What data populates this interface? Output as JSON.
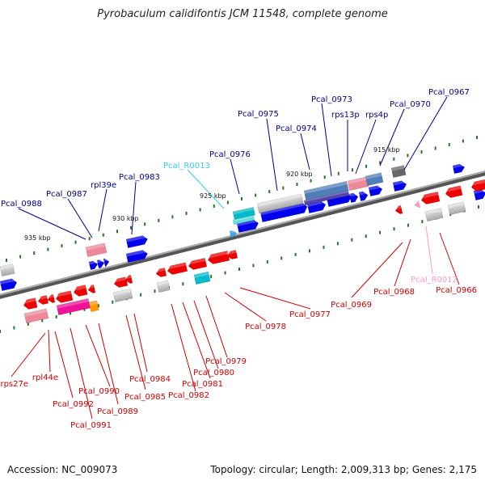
{
  "title": "Pyrobaculum calidifontis JCM 11548, complete genome",
  "footer": {
    "accession": "Accession: NC_009073",
    "topology": "Topology: circular; Length: 2,009,313 bp; Genes: 2,175"
  },
  "colors": {
    "backbone": "#777777",
    "plus_protein": "#0000ee",
    "minus_protein": "#ee0000",
    "rna_plus": "#00bbcc",
    "rna_minus": "#ff99cc",
    "rrna": "#ff9900",
    "ribosomal": "#ee1199",
    "label_plus": "#00008b",
    "label_minus": "#cc0000",
    "label_rna_plus": "#33ccee",
    "label_rna_minus": "#ff99cc",
    "tick": "#227722"
  },
  "kbp_labels": [
    {
      "text": "915 kbp"
    },
    {
      "text": "920 kbp"
    },
    {
      "text": "925 kbp"
    },
    {
      "text": "930 kbp"
    },
    {
      "text": "935 kbp"
    }
  ],
  "gene_labels_top": [
    {
      "text": "Pcal_0967",
      "kind": "plus"
    },
    {
      "text": "Pcal_0970",
      "kind": "plus"
    },
    {
      "text": "rps4p",
      "kind": "plus"
    },
    {
      "text": "rps13p",
      "kind": "plus"
    },
    {
      "text": "Pcal_0973",
      "kind": "plus"
    },
    {
      "text": "Pcal_0974",
      "kind": "plus"
    },
    {
      "text": "Pcal_0975",
      "kind": "plus"
    },
    {
      "text": "Pcal_0976",
      "kind": "plus"
    },
    {
      "text": "Pcal_R0013",
      "kind": "rna_plus"
    },
    {
      "text": "Pcal_0983",
      "kind": "plus"
    },
    {
      "text": "rpl39e",
      "kind": "plus"
    },
    {
      "text": "Pcal_0987",
      "kind": "plus"
    },
    {
      "text": "Pcal_0988",
      "kind": "plus"
    }
  ],
  "gene_labels_bottom": [
    {
      "text": "Pcal_0966",
      "kind": "minus"
    },
    {
      "text": "Pcal_R0012",
      "kind": "rna_minus"
    },
    {
      "text": "Pcal_0968",
      "kind": "minus"
    },
    {
      "text": "Pcal_0969",
      "kind": "minus"
    },
    {
      "text": "Pcal_0977",
      "kind": "minus"
    },
    {
      "text": "Pcal_0978",
      "kind": "minus"
    },
    {
      "text": "Pcal_0979",
      "kind": "minus"
    },
    {
      "text": "Pcal_0980",
      "kind": "minus"
    },
    {
      "text": "Pcal_0981",
      "kind": "minus"
    },
    {
      "text": "Pcal_0982",
      "kind": "minus"
    },
    {
      "text": "Pcal_0984",
      "kind": "minus"
    },
    {
      "text": "Pcal_0985",
      "kind": "minus"
    },
    {
      "text": "Pcal_0989",
      "kind": "minus"
    },
    {
      "text": "Pcal_0990",
      "kind": "minus"
    },
    {
      "text": "Pcal_0991",
      "kind": "minus"
    },
    {
      "text": "Pcal_0992",
      "kind": "minus"
    },
    {
      "text": "rpl44e",
      "kind": "minus"
    },
    {
      "text": "rps27e",
      "kind": "minus"
    }
  ]
}
